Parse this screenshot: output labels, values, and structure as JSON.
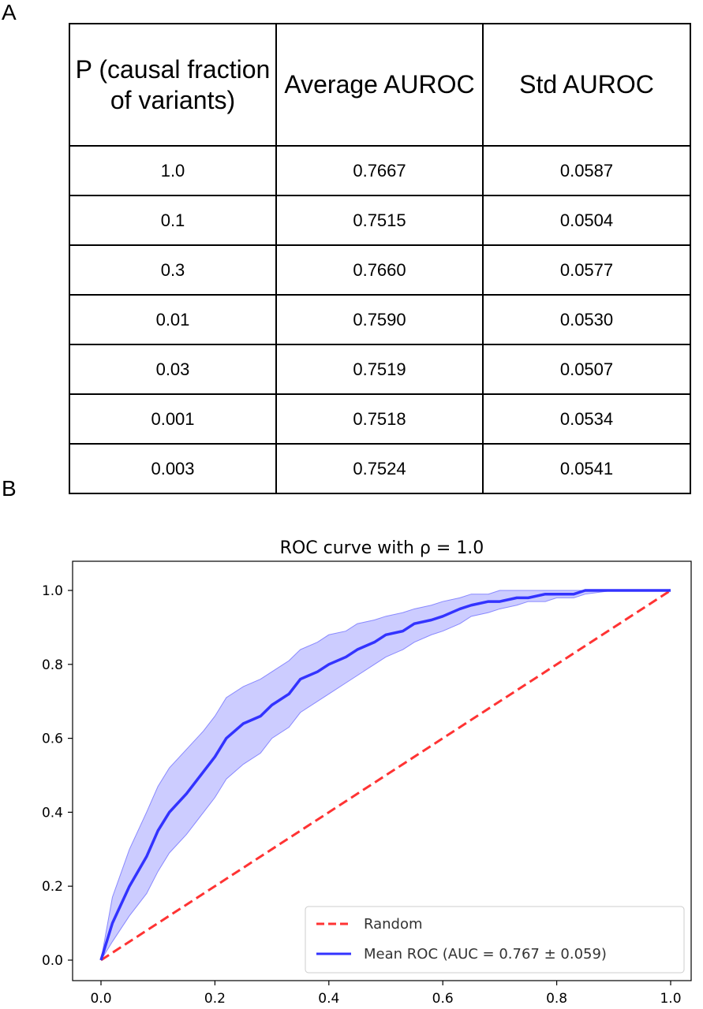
{
  "panel_labels": {
    "a": "A",
    "b": "B"
  },
  "table": {
    "headers": [
      "P (causal fraction of variants)",
      "Average AUROC",
      "Std AUROC"
    ],
    "rows": [
      [
        "1.0",
        "0.7667",
        "0.0587"
      ],
      [
        "0.1",
        "0.7515",
        "0.0504"
      ],
      [
        "0.3",
        "0.7660",
        "0.0577"
      ],
      [
        "0.01",
        "0.7590",
        "0.0530"
      ],
      [
        "0.03",
        "0.7519",
        "0.0507"
      ],
      [
        "0.001",
        "0.7518",
        "0.0534"
      ],
      [
        "0.003",
        "0.7524",
        "0.0541"
      ]
    ]
  },
  "chart_data": {
    "type": "line",
    "title": "ROC curve with ρ = 1.0",
    "xlabel": "",
    "ylabel": "",
    "xlim": [
      0.0,
      1.0
    ],
    "ylim": [
      0.0,
      1.0
    ],
    "xticks": [
      "0.0",
      "0.2",
      "0.4",
      "0.6",
      "0.8",
      "1.0"
    ],
    "yticks": [
      "0.0",
      "0.2",
      "0.4",
      "0.6",
      "0.8",
      "1.0"
    ],
    "grid": false,
    "legend_position": "bottom-right",
    "series": [
      {
        "name": "Random",
        "style": "dashed",
        "color": "#ff3333",
        "x": [
          0.0,
          1.0
        ],
        "y": [
          0.0,
          1.0
        ]
      },
      {
        "name": "Mean ROC (AUC = 0.767 ± 0.059)",
        "style": "solid",
        "color": "#3333ff",
        "x": [
          0.0,
          0.02,
          0.05,
          0.08,
          0.1,
          0.12,
          0.15,
          0.18,
          0.2,
          0.22,
          0.25,
          0.28,
          0.3,
          0.33,
          0.35,
          0.38,
          0.4,
          0.43,
          0.45,
          0.48,
          0.5,
          0.53,
          0.55,
          0.58,
          0.6,
          0.63,
          0.65,
          0.68,
          0.7,
          0.73,
          0.75,
          0.78,
          0.8,
          0.83,
          0.85,
          0.9,
          0.95,
          1.0
        ],
        "y": [
          0.0,
          0.1,
          0.2,
          0.28,
          0.35,
          0.4,
          0.45,
          0.51,
          0.55,
          0.6,
          0.64,
          0.66,
          0.69,
          0.72,
          0.76,
          0.78,
          0.8,
          0.82,
          0.84,
          0.86,
          0.88,
          0.89,
          0.91,
          0.92,
          0.93,
          0.95,
          0.96,
          0.97,
          0.97,
          0.98,
          0.98,
          0.99,
          0.99,
          0.99,
          1.0,
          1.0,
          1.0,
          1.0
        ]
      }
    ],
    "band": {
      "color": "#aaaaff",
      "x": [
        0.0,
        0.02,
        0.05,
        0.08,
        0.1,
        0.12,
        0.15,
        0.18,
        0.2,
        0.22,
        0.25,
        0.28,
        0.3,
        0.33,
        0.35,
        0.38,
        0.4,
        0.43,
        0.45,
        0.48,
        0.5,
        0.53,
        0.55,
        0.58,
        0.6,
        0.63,
        0.65,
        0.68,
        0.7,
        0.73,
        0.75,
        0.78,
        0.8,
        0.83,
        0.85,
        0.9,
        0.95,
        1.0
      ],
      "upper": [
        0.0,
        0.17,
        0.3,
        0.4,
        0.47,
        0.52,
        0.57,
        0.62,
        0.66,
        0.71,
        0.74,
        0.76,
        0.78,
        0.81,
        0.84,
        0.86,
        0.88,
        0.89,
        0.91,
        0.92,
        0.93,
        0.94,
        0.95,
        0.96,
        0.97,
        0.98,
        0.99,
        0.99,
        1.0,
        1.0,
        1.0,
        1.0,
        1.0,
        1.0,
        1.0,
        1.0,
        1.0,
        1.0
      ],
      "lower": [
        0.0,
        0.05,
        0.12,
        0.18,
        0.24,
        0.29,
        0.34,
        0.4,
        0.44,
        0.49,
        0.53,
        0.56,
        0.6,
        0.63,
        0.67,
        0.7,
        0.72,
        0.75,
        0.77,
        0.8,
        0.82,
        0.84,
        0.86,
        0.88,
        0.89,
        0.91,
        0.93,
        0.94,
        0.95,
        0.96,
        0.97,
        0.97,
        0.98,
        0.98,
        0.99,
        1.0,
        1.0,
        1.0
      ]
    }
  }
}
